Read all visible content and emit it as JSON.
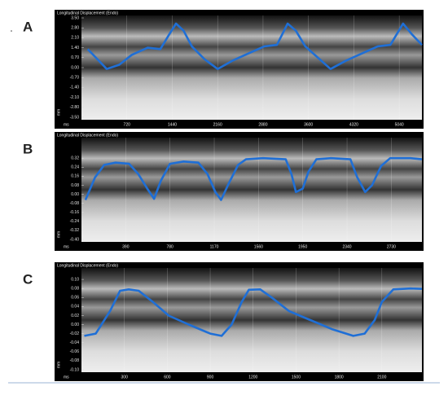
{
  "chart_data": [
    {
      "type": "line",
      "panel": "A",
      "title": "Longitudinal Displacement (Endo)",
      "xlabel": "ms",
      "ylabel": "mm",
      "color": "#1f6fd6",
      "xlim": [
        0,
        5400
      ],
      "ylim": [
        -3.5,
        3.5
      ],
      "xticks": [
        720,
        1440,
        2160,
        2880,
        3600,
        4320,
        5040
      ],
      "yticks": [
        {
          "value": 3.5,
          "label": "3.50"
        },
        {
          "value": 2.8,
          "label": "2.80"
        },
        {
          "value": 2.1,
          "label": "2.10"
        },
        {
          "value": 1.4,
          "label": "1.40"
        },
        {
          "value": 0.7,
          "label": "0.70"
        },
        {
          "value": 0,
          "label": "0.00"
        },
        {
          "value": -0.7,
          "label": "-0.70"
        },
        {
          "value": -1.4,
          "label": "-1.40"
        },
        {
          "value": -2.1,
          "label": "-2.10"
        },
        {
          "value": -2.8,
          "label": "-2.80"
        },
        {
          "value": -3.5,
          "label": "-3.50"
        }
      ],
      "x": [
        100,
        250,
        400,
        600,
        800,
        1050,
        1250,
        1400,
        1500,
        1620,
        1750,
        1950,
        2160,
        2400,
        2650,
        2900,
        3100,
        3270,
        3400,
        3550,
        3750,
        3950,
        4200,
        4450,
        4700,
        4900,
        5100,
        5250,
        5400
      ],
      "values": [
        1.3,
        0.6,
        -0.1,
        0.2,
        0.9,
        1.4,
        1.3,
        2.4,
        3.1,
        2.6,
        1.5,
        0.6,
        -0.1,
        0.5,
        1.0,
        1.5,
        1.6,
        3.1,
        2.6,
        1.5,
        0.7,
        -0.1,
        0.5,
        1.0,
        1.5,
        1.6,
        3.1,
        2.3,
        1.6
      ]
    },
    {
      "type": "line",
      "panel": "B",
      "title": "Longitudinal Displacement (Endo)",
      "xlabel": "ms",
      "ylabel": "mm",
      "color": "#1f6fd6",
      "xlim": [
        0,
        3000
      ],
      "ylim": [
        -0.4,
        0.48
      ],
      "xticks": [
        390,
        780,
        1170,
        1560,
        1950,
        2340,
        2730
      ],
      "yticks": [
        {
          "value": 0.32,
          "label": "0.32"
        },
        {
          "value": 0.24,
          "label": "0.24"
        },
        {
          "value": 0.16,
          "label": "0.16"
        },
        {
          "value": 0.08,
          "label": "0.08"
        },
        {
          "value": 0,
          "label": "0.00"
        },
        {
          "value": -0.08,
          "label": "-0.08"
        },
        {
          "value": -0.16,
          "label": "-0.16"
        },
        {
          "value": -0.24,
          "label": "-0.24"
        },
        {
          "value": -0.32,
          "label": "-0.32"
        },
        {
          "value": -0.4,
          "label": "-0.40"
        }
      ],
      "x": [
        35,
        120,
        200,
        300,
        420,
        500,
        580,
        640,
        700,
        780,
        900,
        1030,
        1110,
        1180,
        1230,
        1300,
        1380,
        1450,
        1600,
        1800,
        1850,
        1890,
        1950,
        2000,
        2070,
        2200,
        2370,
        2430,
        2500,
        2560,
        2640,
        2720,
        2900,
        3000
      ],
      "values": [
        -0.05,
        0.15,
        0.26,
        0.28,
        0.27,
        0.18,
        0.05,
        -0.04,
        0.12,
        0.27,
        0.29,
        0.28,
        0.18,
        0.02,
        -0.05,
        0.1,
        0.26,
        0.31,
        0.32,
        0.31,
        0.18,
        0.02,
        0.05,
        0.2,
        0.31,
        0.32,
        0.31,
        0.15,
        0.02,
        0.08,
        0.25,
        0.32,
        0.32,
        0.31
      ]
    },
    {
      "type": "line",
      "panel": "C",
      "title": "Longitudinal Displacement (Endo)",
      "xlabel": "ms",
      "ylabel": "mm",
      "color": "#1f6fd6",
      "xlim": [
        0,
        2380
      ],
      "ylim": [
        -0.1,
        0.12
      ],
      "xticks": [
        300,
        600,
        900,
        1200,
        1500,
        1800,
        2100
      ],
      "yticks": [
        {
          "value": 0.1,
          "label": "0.10"
        },
        {
          "value": 0.08,
          "label": "0.08"
        },
        {
          "value": 0.06,
          "label": "0.06"
        },
        {
          "value": 0.04,
          "label": "0.04"
        },
        {
          "value": 0.02,
          "label": "0.02"
        },
        {
          "value": 0,
          "label": "0.00"
        },
        {
          "value": -0.02,
          "label": "-0.02"
        },
        {
          "value": -0.04,
          "label": "-0.04"
        },
        {
          "value": -0.06,
          "label": "-0.06"
        },
        {
          "value": -0.08,
          "label": "-0.08"
        },
        {
          "value": -0.1,
          "label": "-0.10"
        }
      ],
      "x": [
        20,
        100,
        200,
        270,
        330,
        400,
        500,
        610,
        750,
        900,
        980,
        1050,
        1120,
        1170,
        1250,
        1330,
        1450,
        1600,
        1750,
        1900,
        1980,
        2050,
        2100,
        2180,
        2300,
        2380
      ],
      "values": [
        -0.025,
        -0.02,
        0.03,
        0.075,
        0.078,
        0.075,
        0.05,
        0.02,
        0,
        -0.02,
        -0.025,
        0,
        0.05,
        0.077,
        0.078,
        0.06,
        0.03,
        0.01,
        -0.01,
        -0.025,
        -0.02,
        0.01,
        0.05,
        0.078,
        0.08,
        0.079
      ]
    }
  ]
}
